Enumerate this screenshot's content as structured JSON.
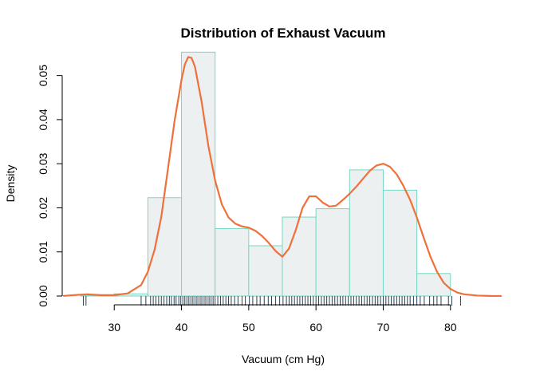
{
  "chart_data": {
    "type": "histogram",
    "title": "Distribution of Exhaust Vacuum",
    "xlabel": "Vacuum (cm Hg)",
    "ylabel": "Density",
    "xlim": [
      22.5,
      87.5
    ],
    "ylim": [
      0,
      0.055
    ],
    "x_ticks": [
      30,
      40,
      50,
      60,
      70,
      80
    ],
    "y_ticks": [
      0.0,
      0.01,
      0.02,
      0.03,
      0.04,
      0.05
    ],
    "y_tick_labels": [
      "0.00",
      "0.01",
      "0.02",
      "0.03",
      "0.04",
      "0.05"
    ],
    "grid": false,
    "bin_edges": [
      25,
      30,
      35,
      40,
      45,
      50,
      55,
      60,
      65,
      70,
      75,
      80
    ],
    "bin_densities": [
      0.0002,
      0.0005,
      0.0223,
      0.0553,
      0.0153,
      0.0114,
      0.0179,
      0.0198,
      0.0286,
      0.024,
      0.0051
    ],
    "density_curve": {
      "x": [
        22.5,
        24,
        26,
        28,
        30,
        32,
        34,
        35,
        36,
        37,
        38,
        39,
        40,
        40.5,
        41,
        41.5,
        42,
        43,
        44,
        45,
        46,
        47,
        48,
        49,
        50,
        51,
        52,
        53,
        54,
        55,
        56,
        57,
        58,
        59,
        60,
        61,
        62,
        63,
        64,
        65,
        66,
        67,
        68,
        69,
        70,
        71,
        72,
        73,
        74,
        75,
        76,
        77,
        78,
        79,
        80,
        81,
        82,
        84,
        86,
        87.5
      ],
      "y": [
        3e-05,
        0.0002,
        0.0004,
        0.0002,
        0.0002,
        0.0006,
        0.0025,
        0.0055,
        0.0105,
        0.018,
        0.029,
        0.04,
        0.049,
        0.0525,
        0.0542,
        0.054,
        0.052,
        0.044,
        0.034,
        0.0262,
        0.0208,
        0.0178,
        0.0164,
        0.0158,
        0.0155,
        0.0148,
        0.0136,
        0.012,
        0.0102,
        0.0089,
        0.0108,
        0.015,
        0.02,
        0.0226,
        0.0226,
        0.0212,
        0.0203,
        0.0205,
        0.0218,
        0.0232,
        0.0248,
        0.0266,
        0.0284,
        0.0296,
        0.03,
        0.0293,
        0.0276,
        0.025,
        0.0218,
        0.0178,
        0.0133,
        0.009,
        0.0055,
        0.003,
        0.0016,
        0.0008,
        0.0004,
        0.0001,
        2e-05,
        1e-05
      ]
    },
    "rug": [
      25.4,
      25.8,
      34.0,
      34.7,
      35.4,
      35.8,
      36.2,
      36.6,
      37.0,
      37.4,
      37.8,
      38.2,
      38.5,
      38.9,
      39.2,
      39.6,
      39.9,
      40.2,
      40.5,
      40.8,
      41.1,
      41.4,
      41.7,
      42.0,
      42.3,
      42.6,
      42.9,
      43.2,
      43.5,
      43.8,
      44.1,
      44.4,
      44.7,
      45.0,
      45.4,
      45.8,
      46.2,
      46.6,
      47.0,
      47.4,
      47.9,
      48.4,
      49.0,
      49.5,
      50.1,
      50.6,
      51.2,
      51.7,
      52.3,
      52.9,
      53.4,
      54.0,
      54.6,
      55.1,
      55.6,
      56.0,
      56.4,
      56.8,
      57.2,
      57.6,
      58.0,
      58.4,
      58.8,
      59.2,
      59.6,
      60.0,
      60.4,
      60.8,
      61.2,
      61.6,
      62.0,
      62.4,
      62.8,
      63.2,
      63.6,
      64.0,
      64.4,
      64.8,
      65.2,
      65.6,
      66.0,
      66.4,
      66.8,
      67.2,
      67.6,
      68.0,
      68.4,
      68.8,
      69.2,
      69.6,
      70.0,
      70.4,
      70.8,
      71.2,
      71.6,
      72.0,
      72.4,
      72.8,
      73.2,
      73.6,
      74.0,
      74.5,
      75.0,
      75.5,
      76.1,
      76.9,
      77.5,
      78.0,
      78.6,
      79.7,
      80.2,
      81.5
    ],
    "colors": {
      "bar_fill": "#ecf0f1",
      "bar_stroke": "#76d7c4",
      "density_line": "#f0703a",
      "rug": "#2c3e50"
    }
  }
}
